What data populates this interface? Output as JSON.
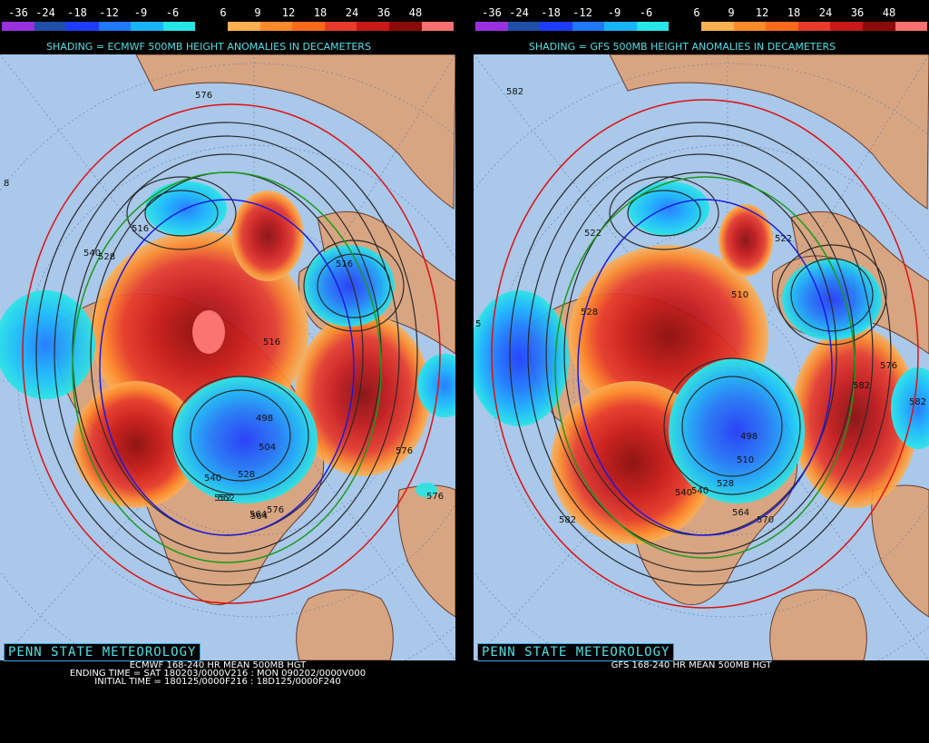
{
  "colorbar": {
    "labels": [
      "-36",
      "-24",
      "-18",
      "-12",
      "-9",
      "-6",
      "6",
      "9",
      "12",
      "18",
      "24",
      "36",
      "48"
    ],
    "colors": [
      "#9b30e0",
      "#1f4fa8",
      "#1e3cff",
      "#1f78ff",
      "#19b4ff",
      "#28e6e6",
      "#000000",
      "#ffb050",
      "#ff8a2a",
      "#ff6a1a",
      "#e83a2a",
      "#c81818",
      "#8a0a0a",
      "#ff7070"
    ]
  },
  "panels": [
    {
      "id": "left",
      "shading_title": "SHADING = ECMWF 500MB HEIGHT ANOMALIES IN DECAMETERS",
      "watermark": "PENN STATE METEOROLOGY",
      "caption_lines": [
        "ECMWF 168-240 HR MEAN 500MB HGT",
        "ENDING TIME = SAT 180203/0000V216 : MON 090202/0000V000",
        "INITIAL TIME = 180125/0000F216 : 18D125/0000F240"
      ],
      "contour_labels": [
        "576",
        "516",
        "528",
        "516",
        "540",
        "552",
        "564",
        "576",
        "576",
        "516",
        "498",
        "504",
        "528",
        "540",
        "552",
        "576",
        "564",
        "8"
      ]
    },
    {
      "id": "right",
      "shading_title": "SHADING = GFS 500MB HEIGHT ANOMALIES IN DECAMETERS",
      "watermark": "PENN STATE METEOROLOGY",
      "caption_lines": [
        "GFS 168-240 HR MEAN 500MB HGT"
      ],
      "contour_labels": [
        "582",
        "522",
        "510",
        "528",
        "522",
        "540",
        "498",
        "510",
        "528",
        "540",
        "564",
        "570",
        "576",
        "582",
        "582",
        "582",
        "5"
      ]
    }
  ]
}
